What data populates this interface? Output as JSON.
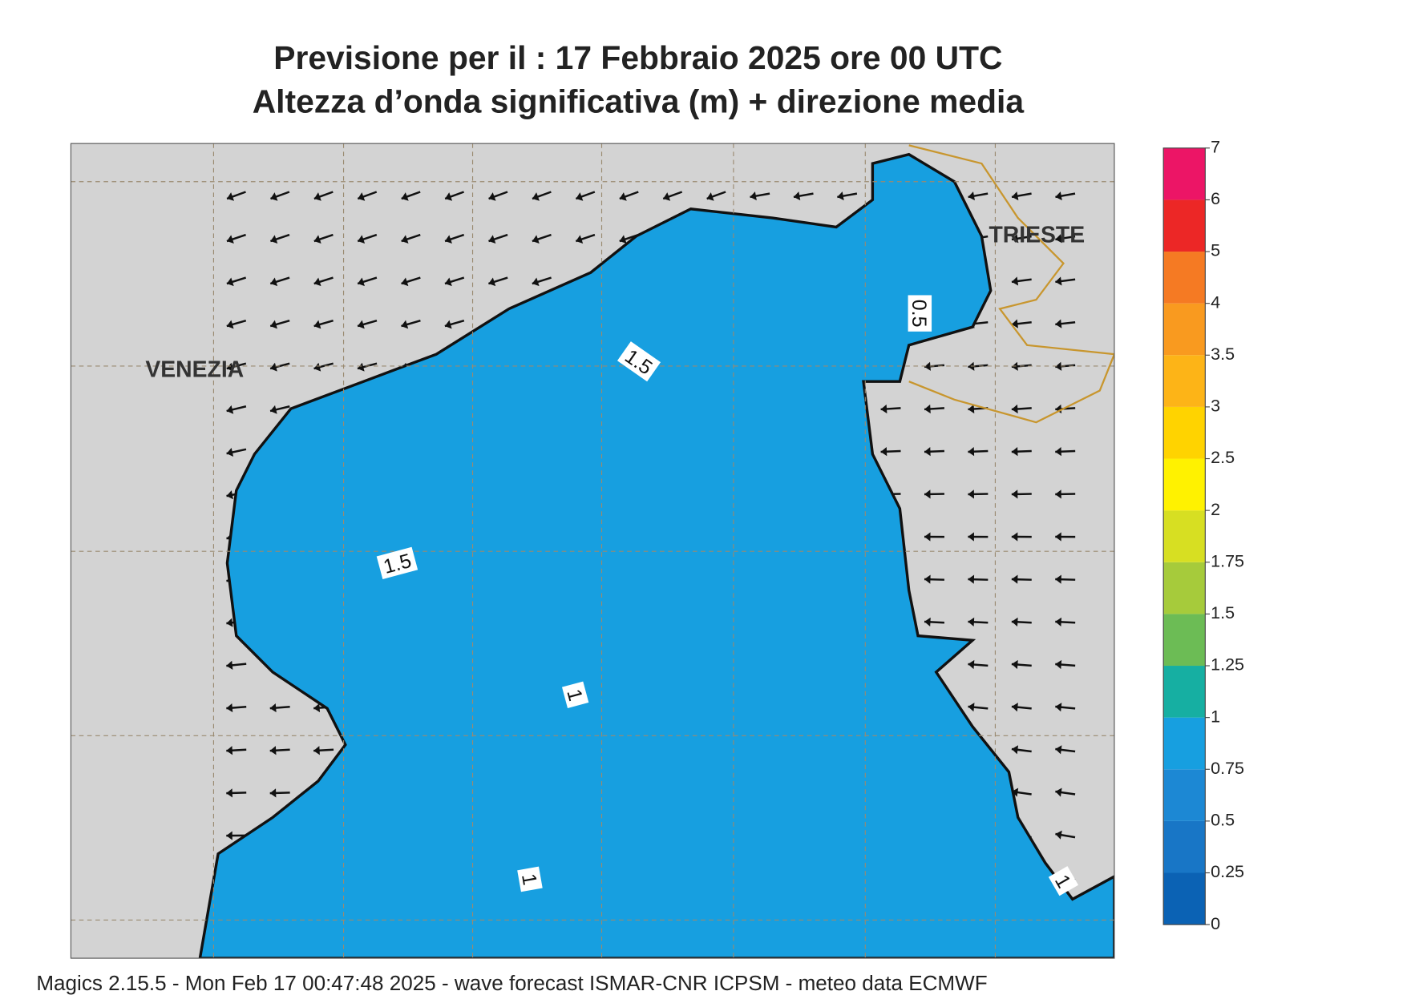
{
  "header": {
    "title_line1": "Previsione per il  :  17  Febbraio 2025   ore 00 UTC",
    "title_line2": "Altezza d’onda significativa (m) + direzione media"
  },
  "map": {
    "places": [
      "VENEZIA",
      "TRIESTE"
    ],
    "contour_labels": [
      "1.5",
      "1.5",
      "0.5",
      "1",
      "1",
      "1"
    ]
  },
  "colorbar": {
    "ticks": [
      0,
      0.25,
      0.5,
      0.75,
      1,
      1.25,
      1.5,
      1.75,
      2,
      2.5,
      3,
      3.5,
      4,
      5,
      6,
      7
    ],
    "colors": [
      "#0b62b4",
      "#1876c6",
      "#1c88d4",
      "#179fe0",
      "#16afa2",
      "#6cbc55",
      "#a6cb3b",
      "#d7df22",
      "#fff200",
      "#ffd300",
      "#fdb417",
      "#f99a1f",
      "#f57a23",
      "#ec2726",
      "#ec1566"
    ]
  },
  "footer": "Magics 2.15.5 - Mon Feb 17 00:47:48 2025 - wave forecast  ISMAR-CNR  ICPSM - meteo data   ECMWF"
}
